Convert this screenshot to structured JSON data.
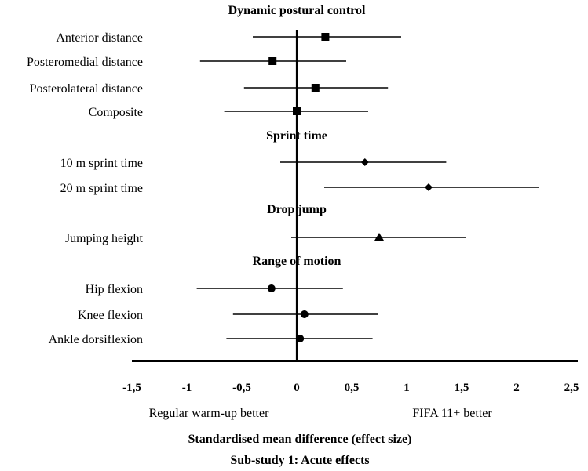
{
  "chart_data": {
    "type": "forest",
    "xlim": [
      -1.5,
      2.5
    ],
    "ticks": [
      {
        "value": -1.5,
        "label": "-1,5"
      },
      {
        "value": -1,
        "label": "-1"
      },
      {
        "value": -0.5,
        "label": "-0,5"
      },
      {
        "value": 0,
        "label": "0"
      },
      {
        "value": 0.5,
        "label": "0,5"
      },
      {
        "value": 1,
        "label": "1"
      },
      {
        "value": 1.5,
        "label": "1,5"
      },
      {
        "value": 2,
        "label": "2"
      },
      {
        "value": 2.5,
        "label": "2,5"
      }
    ],
    "left_note": "Regular warm-up better",
    "right_note": "FIFA 11+ better",
    "xlabel": "Standardised mean difference (effect size)",
    "caption": "Sub-study 1: Acute effects",
    "groups": [
      {
        "title": "Dynamic postural control",
        "marker": "square",
        "items": [
          {
            "label": "Anterior distance",
            "est": 0.26,
            "lo": -0.4,
            "hi": 0.95
          },
          {
            "label": "Posteromedial distance",
            "est": -0.22,
            "lo": -0.88,
            "hi": 0.45
          },
          {
            "label": "Posterolateral distance",
            "est": 0.17,
            "lo": -0.48,
            "hi": 0.83
          },
          {
            "label": "Composite",
            "est": 0.0,
            "lo": -0.66,
            "hi": 0.65
          }
        ]
      },
      {
        "title": "Sprint time",
        "marker": "diamond",
        "items": [
          {
            "label": "10 m sprint time",
            "est": 0.62,
            "lo": -0.15,
            "hi": 1.36
          },
          {
            "label": "20 m sprint time",
            "est": 1.2,
            "lo": 0.25,
            "hi": 2.2
          }
        ]
      },
      {
        "title": "Drop jump",
        "marker": "triangle",
        "items": [
          {
            "label": "Jumping height",
            "est": 0.75,
            "lo": -0.05,
            "hi": 1.54
          }
        ]
      },
      {
        "title": "Range of motion",
        "marker": "circle",
        "items": [
          {
            "label": "Hip flexion",
            "est": -0.23,
            "lo": -0.91,
            "hi": 0.42
          },
          {
            "label": "Knee flexion",
            "est": 0.07,
            "lo": -0.58,
            "hi": 0.74
          },
          {
            "label": "Ankle dorsiflexion",
            "est": 0.03,
            "lo": -0.64,
            "hi": 0.69
          }
        ]
      }
    ]
  }
}
